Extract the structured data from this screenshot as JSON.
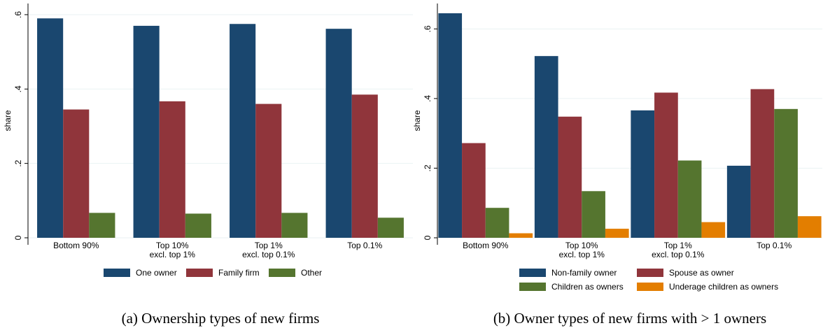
{
  "chart_data": [
    {
      "type": "bar",
      "caption": "(a) Ownership types of new firms",
      "ylabel": "share",
      "categories": [
        "Bottom 90%",
        "Top 10%\nexcl. top 1%",
        "Top 1%\nexcl. top 0.1%",
        "Top 0.1%"
      ],
      "series": [
        {
          "name": "One owner",
          "color": "#1a476f",
          "values": [
            0.59,
            0.57,
            0.575,
            0.562
          ]
        },
        {
          "name": "Family firm",
          "color": "#90353b",
          "values": [
            0.345,
            0.367,
            0.36,
            0.385
          ]
        },
        {
          "name": "Other",
          "color": "#55752f",
          "values": [
            0.067,
            0.065,
            0.067,
            0.054
          ]
        }
      ],
      "ylim": [
        0,
        0.63
      ],
      "yticks": [
        {
          "value": 0,
          "label": "0"
        },
        {
          "value": 0.2,
          "label": ".2"
        },
        {
          "value": 0.4,
          "label": ".4"
        },
        {
          "value": 0.6,
          "label": ".6"
        }
      ],
      "grid": true
    },
    {
      "type": "bar",
      "caption": "(b) Owner types of new firms with > 1 owners",
      "ylabel": "share",
      "categories": [
        "Bottom 90%",
        "Top 10%\nexcl. top 1%",
        "Top 1%\nexcl. top 0.1%",
        "Top 0.1%"
      ],
      "series": [
        {
          "name": "Non-family owner",
          "color": "#1a476f",
          "values": [
            0.645,
            0.522,
            0.366,
            0.207
          ]
        },
        {
          "name": "Spouse as owner",
          "color": "#90353b",
          "values": [
            0.272,
            0.348,
            0.417,
            0.427
          ]
        },
        {
          "name": "Children as owners",
          "color": "#55752f",
          "values": [
            0.086,
            0.134,
            0.222,
            0.37
          ]
        },
        {
          "name": "Underage children as owners",
          "color": "#e37e00",
          "values": [
            0.013,
            0.026,
            0.045,
            0.062
          ]
        }
      ],
      "ylim": [
        0,
        0.673
      ],
      "yticks": [
        {
          "value": 0,
          "label": "0"
        },
        {
          "value": 0.2,
          "label": ".2"
        },
        {
          "value": 0.4,
          "label": ".4"
        },
        {
          "value": 0.6,
          "label": ".6"
        }
      ],
      "grid": true
    }
  ]
}
